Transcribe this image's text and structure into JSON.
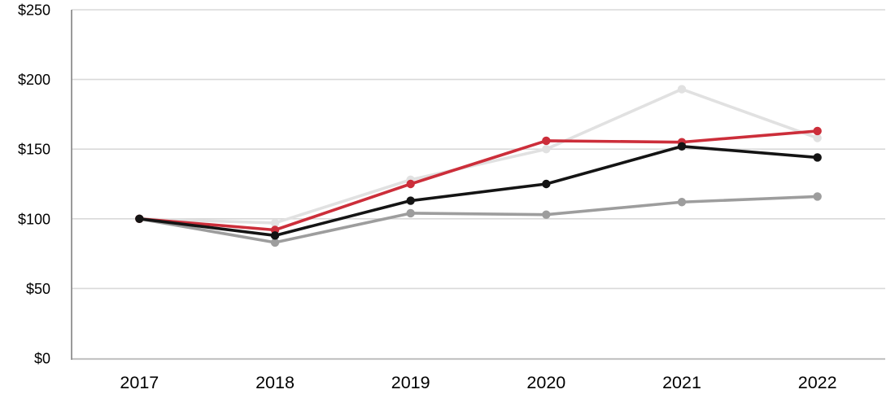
{
  "chart_data": {
    "type": "line",
    "title": "",
    "xlabel": "",
    "ylabel": "",
    "categories": [
      "2017",
      "2018",
      "2019",
      "2020",
      "2021",
      "2022"
    ],
    "series": [
      {
        "name": "light-gray-series",
        "color": "#e1e1e1",
        "values": [
          100,
          97,
          128,
          150,
          193,
          158
        ]
      },
      {
        "name": "gray-series",
        "color": "#9d9d9d",
        "values": [
          100,
          83,
          104,
          103,
          112,
          116
        ]
      },
      {
        "name": "red-series",
        "color": "#cc2e3a",
        "values": [
          100,
          92,
          125,
          156,
          155,
          163
        ]
      },
      {
        "name": "black-series",
        "color": "#141414",
        "values": [
          100,
          88,
          113,
          125,
          152,
          144
        ]
      }
    ],
    "ylim": [
      0,
      250
    ],
    "y_ticks": [
      {
        "value": 0,
        "label": "$0"
      },
      {
        "value": 50,
        "label": "$50"
      },
      {
        "value": 100,
        "label": "$100"
      },
      {
        "value": 150,
        "label": "$150"
      },
      {
        "value": 200,
        "label": "$200"
      },
      {
        "value": 250,
        "label": "$250"
      }
    ],
    "grid": "horizontal",
    "legend_position": "none",
    "marker": "circle",
    "colors": {
      "gridline": "#d9d9d9",
      "y_axis_line": "#8f8f8f",
      "x_axis_line": "#c4c4c4",
      "tick_label": "#000000"
    }
  }
}
